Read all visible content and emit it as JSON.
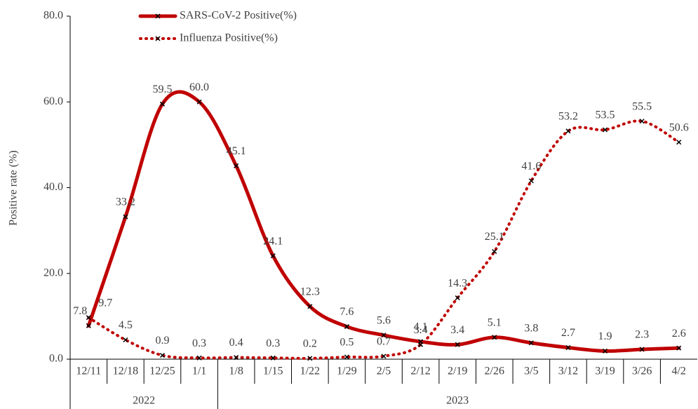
{
  "chart_data": {
    "type": "line",
    "y_label": "Positive rate (%)",
    "categories": [
      "12/11",
      "12/18",
      "12/25",
      "1/1",
      "1/8",
      "1/15",
      "1/22",
      "1/29",
      "2/5",
      "2/12",
      "2/19",
      "2/26",
      "3/5",
      "3/12",
      "3/19",
      "3/26",
      "4/2"
    ],
    "year_groups": [
      {
        "label": "2022",
        "span": 4
      },
      {
        "label": "2023",
        "span": 13
      }
    ],
    "series": [
      {
        "name": "SARS-CoV-2 Positive(%)",
        "color": "#c00000",
        "style": "solid",
        "values": [
          7.8,
          33.2,
          59.5,
          60.0,
          45.1,
          24.1,
          12.3,
          7.6,
          5.6,
          4.1,
          3.4,
          5.1,
          3.8,
          2.7,
          1.9,
          2.3,
          2.6
        ],
        "value_labels": [
          "7.8",
          "33.2",
          "59.5",
          "60.0",
          "45.1",
          "24.1",
          "12.3",
          "7.6",
          "5.6",
          "4.1",
          "3.4",
          "5.1",
          "3.8",
          "2.7",
          "1.9",
          "2.3",
          "2.6"
        ]
      },
      {
        "name": "Influenza Positive(%)",
        "color": "#c00000",
        "style": "dotted",
        "values": [
          9.7,
          4.5,
          0.9,
          0.3,
          0.4,
          0.3,
          0.2,
          0.5,
          0.7,
          3.4,
          14.3,
          25.1,
          41.6,
          53.2,
          53.5,
          55.5,
          50.6
        ],
        "value_labels": [
          "9.7",
          "4.5",
          "0.9",
          "0.3",
          "0.4",
          "0.3",
          "0.2",
          "0.5",
          "0.7",
          "3.4",
          "14.3",
          "25.1",
          "41.6",
          "53.2",
          "53.5",
          "55.5",
          "50.6"
        ]
      }
    ],
    "ylim": [
      0,
      80
    ],
    "yticks": [
      {
        "value": 0,
        "label": "0.0"
      },
      {
        "value": 20,
        "label": "20.0"
      },
      {
        "value": 40,
        "label": "40.0"
      },
      {
        "value": 60,
        "label": "60.0"
      },
      {
        "value": 80,
        "label": "80.0"
      }
    ],
    "grid": false
  }
}
